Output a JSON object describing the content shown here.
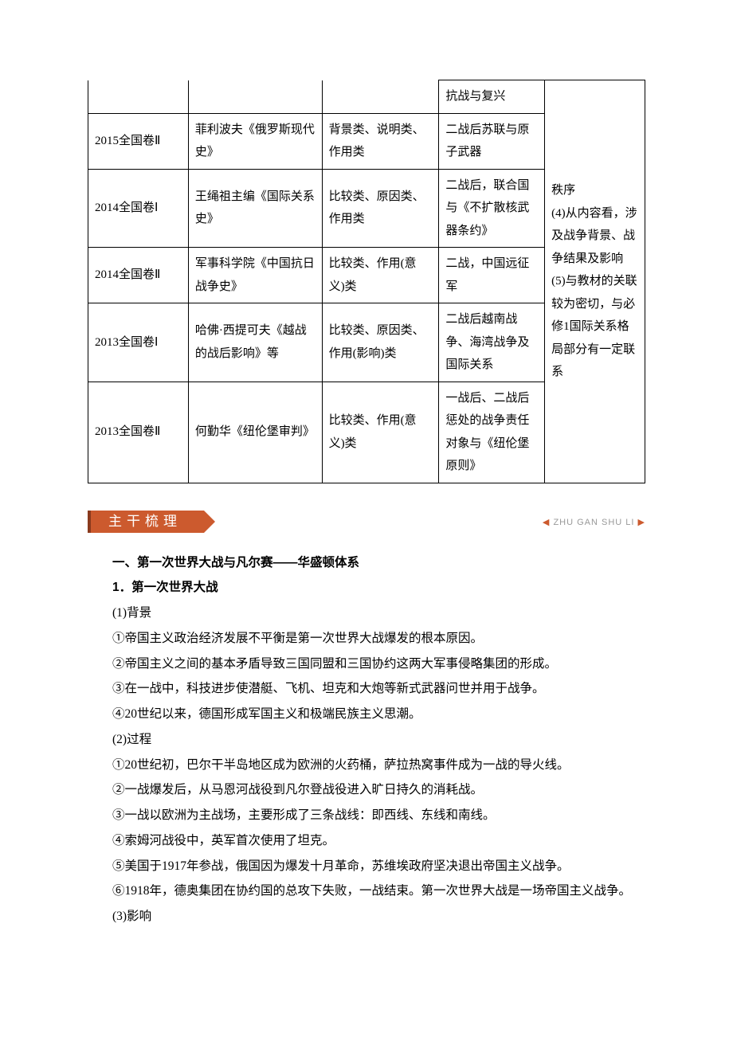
{
  "table": {
    "stub": {
      "c4": "抗战与复兴",
      "c5": "秩序"
    },
    "rows": [
      {
        "exam": "2015全国卷Ⅱ",
        "src": "菲利波夫《俄罗斯现代史》",
        "type": "背景类、说明类、作用类",
        "topic": "二战后苏联与原子武器"
      },
      {
        "exam": "2014全国卷Ⅰ",
        "src": "王绳祖主编《国际关系史》",
        "type": "比较类、原因类、作用类",
        "topic": "二战后，联合国与《不扩散核武器条约》"
      },
      {
        "exam": "2014全国卷Ⅱ",
        "src": "军事科学院《中国抗日战争史》",
        "type": "比较类、作用(意义)类",
        "topic": "二战，中国远征军"
      },
      {
        "exam": "2013全国卷Ⅰ",
        "src": "哈佛·西提可夫《越战的战后影响》等",
        "type": "比较类、原因类、作用(影响)类",
        "topic": "二战后越南战争、海湾战争及国际关系"
      },
      {
        "exam": "2013全国卷Ⅱ",
        "src": "何勤华《纽伦堡审判》",
        "type": "比较类、作用(意义)类",
        "topic": "一战后、二战后惩处的战争责任对象与《纽伦堡原则》"
      }
    ],
    "notes_col": "(4)从内容看，涉及战争背景、战争结果及影响\n(5)与教材的关联较为密切，与必修1国际关系格局部分有一定联系"
  },
  "banner": {
    "title": "主干梳理",
    "pinyin": "ZHU GAN SHU LI"
  },
  "section": {
    "h1": "一、第一次世界大战与凡尔赛——华盛顿体系",
    "h2": "1．第一次世界大战",
    "p_bg_label": "(1)背景",
    "bg1": "①帝国主义政治经济发展不平衡是第一次世界大战爆发的根本原因。",
    "bg2": "②帝国主义之间的基本矛盾导致三国同盟和三国协约这两大军事侵略集团的形成。",
    "bg3": "③在一战中，科技进步使潜艇、飞机、坦克和大炮等新式武器问世并用于战争。",
    "bg4": "④20世纪以来，德国形成军国主义和极端民族主义思潮。",
    "p_proc_label": "(2)过程",
    "pr1": "①20世纪初，巴尔干半岛地区成为欧洲的火药桶，萨拉热窝事件成为一战的导火线。",
    "pr2": "②一战爆发后，从马恩河战役到凡尔登战役进入旷日持久的消耗战。",
    "pr3": "③一战以欧洲为主战场，主要形成了三条战线：即西线、东线和南线。",
    "pr4": "④索姆河战役中，英军首次使用了坦克。",
    "pr5": "⑤美国于1917年参战，俄国因为爆发十月革命，苏维埃政府坚决退出帝国主义战争。",
    "pr6": "⑥1918年，德奥集团在协约国的总攻下失败，一战结束。第一次世界大战是一场帝国主义战争。",
    "p_eff_label": "(3)影响"
  },
  "colors": {
    "accent": "#cc5a2e",
    "text": "#000000",
    "background": "#ffffff",
    "pinyin": "#999999",
    "border": "#000000"
  }
}
